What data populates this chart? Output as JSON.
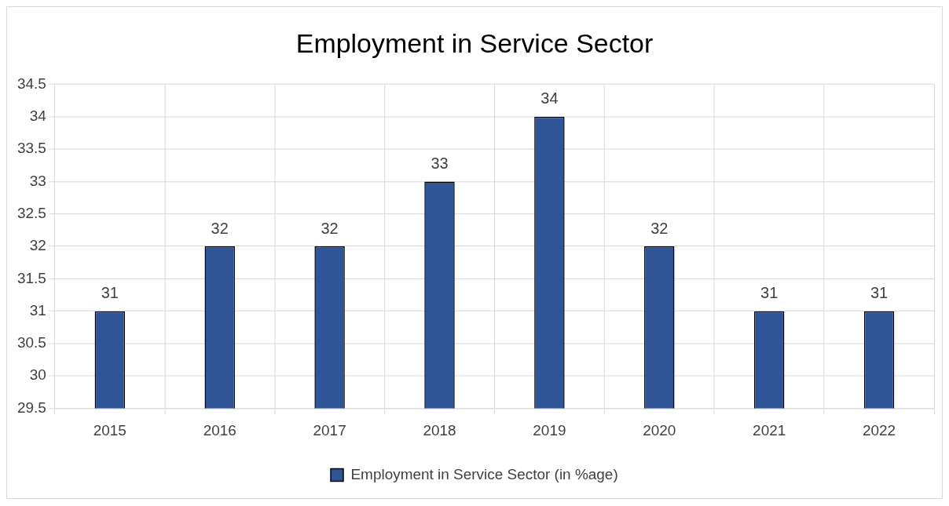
{
  "chart_data": {
    "type": "bar",
    "title": "Employment in Service Sector",
    "categories": [
      "2015",
      "2016",
      "2017",
      "2018",
      "2019",
      "2020",
      "2021",
      "2022"
    ],
    "series": [
      {
        "name": "Employment in Service Sector (in %age)",
        "color": "#2f5597",
        "values": [
          31,
          32,
          32,
          33,
          34,
          32,
          31,
          31
        ]
      }
    ],
    "ylim": [
      29.5,
      34.5
    ],
    "yticks": [
      29.5,
      30,
      30.5,
      31,
      31.5,
      32,
      32.5,
      33,
      33.5,
      34,
      34.5
    ],
    "grid": true,
    "legend": "bottom",
    "data_labels": true
  }
}
